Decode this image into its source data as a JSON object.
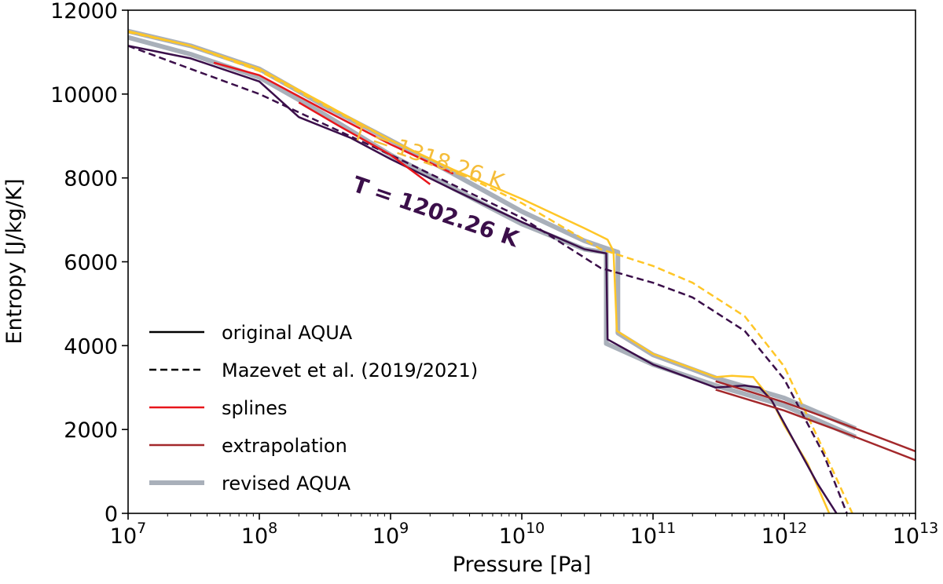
{
  "chart_data": {
    "type": "line",
    "xlabel": "Pressure [Pa]",
    "ylabel": "Entropy [J/kg/K]",
    "x_scale": "log",
    "xlim": [
      10000000.0,
      10000000000000.0
    ],
    "ylim": [
      0,
      12000
    ],
    "x_ticks": [
      {
        "value": 10000000.0,
        "base": "10",
        "exp": "7"
      },
      {
        "value": 100000000.0,
        "base": "10",
        "exp": "8"
      },
      {
        "value": 1000000000.0,
        "base": "10",
        "exp": "9"
      },
      {
        "value": 10000000000.0,
        "base": "10",
        "exp": "10"
      },
      {
        "value": 100000000000.0,
        "base": "10",
        "exp": "11"
      },
      {
        "value": 1000000000000.0,
        "base": "10",
        "exp": "12"
      },
      {
        "value": 10000000000000.0,
        "base": "10",
        "exp": "13"
      }
    ],
    "y_ticks": [
      0,
      2000,
      4000,
      6000,
      8000,
      10000,
      12000
    ],
    "grid": false,
    "legend_position": "lower-left",
    "legend": [
      {
        "label": "original AQUA",
        "color": "#000000",
        "dash": false,
        "width": 2.5
      },
      {
        "label": "Mazevet et al. (2019/2021)",
        "color": "#000000",
        "dash": true,
        "width": 2.5
      },
      {
        "label": "splines",
        "color": "#e8161b",
        "dash": false,
        "width": 2.5
      },
      {
        "label": "extrapolation",
        "color": "#a3282b",
        "dash": false,
        "width": 2.5
      },
      {
        "label": "revised AQUA",
        "color": "#a9b0ba",
        "dash": false,
        "width": 6
      }
    ],
    "annotations": [
      {
        "text": "T = 1318.26 K",
        "color": "#f5bd3a",
        "x": 500000000.0,
        "y": 8950,
        "angle": 19,
        "bold": false
      },
      {
        "text": "T = 1202.26 K",
        "color": "#3b0f4a",
        "x": 500000000.0,
        "y": 7700,
        "angle": 19,
        "bold": true
      }
    ],
    "series": [
      {
        "style": "revised",
        "color": "#a9b0ba",
        "width": 6,
        "dash": false,
        "points": [
          [
            10000000.0,
            11500
          ],
          [
            30000000.0,
            11150
          ],
          [
            100000000.0,
            10600
          ],
          [
            300000000.0,
            9750
          ],
          [
            1000000000.0,
            8900
          ],
          [
            3000000000.0,
            8100
          ],
          [
            10000000000.0,
            7200
          ],
          [
            30000000000.0,
            6500
          ],
          [
            46000000000.0,
            6300
          ],
          [
            54000000000.0,
            6230
          ],
          [
            54000000000.0,
            4300
          ],
          [
            100000000000.0,
            3780
          ],
          [
            300000000000.0,
            3230
          ],
          [
            1000000000000.0,
            2750
          ],
          [
            3500000000000.0,
            2020
          ]
        ]
      },
      {
        "style": "revised",
        "color": "#a9b0ba",
        "width": 6,
        "dash": false,
        "points": [
          [
            10000000.0,
            11350
          ],
          [
            30000000.0,
            10950
          ],
          [
            100000000.0,
            10400
          ],
          [
            300000000.0,
            9550
          ],
          [
            1000000000.0,
            8550
          ],
          [
            3000000000.0,
            7750
          ],
          [
            10000000000.0,
            6900
          ],
          [
            30000000000.0,
            6300
          ],
          [
            44000000000.0,
            6220
          ],
          [
            44000000000.0,
            4050
          ],
          [
            100000000000.0,
            3550
          ],
          [
            300000000000.0,
            3050
          ],
          [
            1000000000000.0,
            2570
          ],
          [
            3500000000000.0,
            1820
          ]
        ]
      },
      {
        "style": "original",
        "color": "#ffc627",
        "width": 2.5,
        "dash": false,
        "points": [
          [
            10000000.0,
            11500
          ],
          [
            30000000.0,
            11150
          ],
          [
            100000000.0,
            10600
          ],
          [
            300000000.0,
            9800
          ],
          [
            1000000000.0,
            8900
          ],
          [
            3000000000.0,
            8200
          ],
          [
            10000000000.0,
            7500
          ],
          [
            30000000000.0,
            6800
          ],
          [
            45000000000.0,
            6530
          ],
          [
            50000000000.0,
            6250
          ],
          [
            53000000000.0,
            4350
          ],
          [
            100000000000.0,
            3800
          ],
          [
            300000000000.0,
            3250
          ],
          [
            400000000000.0,
            3280
          ],
          [
            580000000000.0,
            3250
          ],
          [
            800000000000.0,
            2700
          ],
          [
            1000000000000.0,
            2100
          ],
          [
            1500000000000.0,
            1200
          ],
          [
            2200000000000.0,
            0
          ]
        ]
      },
      {
        "style": "original",
        "color": "#3b0f4a",
        "width": 2.5,
        "dash": false,
        "points": [
          [
            10000000.0,
            11150
          ],
          [
            30000000.0,
            10850
          ],
          [
            100000000.0,
            10300
          ],
          [
            200000000.0,
            9450
          ],
          [
            500000000.0,
            8950
          ],
          [
            1000000000.0,
            8450
          ],
          [
            3000000000.0,
            7720
          ],
          [
            10000000000.0,
            6950
          ],
          [
            30000000000.0,
            6300
          ],
          [
            44000000000.0,
            6200
          ],
          [
            45000000000.0,
            4150
          ],
          [
            100000000000.0,
            3550
          ],
          [
            300000000000.0,
            3000
          ],
          [
            500000000000.0,
            3050
          ],
          [
            650000000000.0,
            3000
          ],
          [
            800000000000.0,
            2700
          ],
          [
            1200000000000.0,
            1700
          ],
          [
            1800000000000.0,
            700
          ],
          [
            2500000000000.0,
            0
          ]
        ]
      },
      {
        "style": "mazevet",
        "color": "#ffc627",
        "width": 2.5,
        "dash": true,
        "points": [
          [
            10000000.0,
            11480
          ],
          [
            30000000.0,
            11150
          ],
          [
            100000000.0,
            10550
          ],
          [
            1000000000.0,
            8900
          ],
          [
            10000000000.0,
            7400
          ],
          [
            40000000000.0,
            6300
          ],
          [
            100000000000.0,
            5900
          ],
          [
            200000000000.0,
            5500
          ],
          [
            500000000000.0,
            4700
          ],
          [
            1000000000000.0,
            3500
          ],
          [
            2000000000000.0,
            1500
          ],
          [
            3300000000000.0,
            0
          ]
        ]
      },
      {
        "style": "mazevet",
        "color": "#3b0f4a",
        "width": 2.5,
        "dash": true,
        "points": [
          [
            10000000.0,
            11150
          ],
          [
            30000000.0,
            10600
          ],
          [
            100000000.0,
            10000
          ],
          [
            1000000000.0,
            8550
          ],
          [
            10000000000.0,
            7050
          ],
          [
            40000000000.0,
            5850
          ],
          [
            100000000000.0,
            5500
          ],
          [
            200000000000.0,
            5150
          ],
          [
            500000000000.0,
            4350
          ],
          [
            1000000000000.0,
            3200
          ],
          [
            2000000000000.0,
            1400
          ],
          [
            3000000000000.0,
            0
          ]
        ]
      },
      {
        "style": "splines",
        "color": "#e8161b",
        "width": 2.5,
        "dash": false,
        "points": [
          [
            45000000.0,
            10750
          ],
          [
            100000000.0,
            10450
          ],
          [
            300000000.0,
            9650
          ],
          [
            1000000000.0,
            8800
          ],
          [
            3000000000.0,
            8100
          ]
        ]
      },
      {
        "style": "splines",
        "color": "#e8161b",
        "width": 2.5,
        "dash": false,
        "points": [
          [
            200000000.0,
            9800
          ],
          [
            400000000.0,
            9250
          ],
          [
            1000000000.0,
            8550
          ],
          [
            2000000000.0,
            7850
          ]
        ]
      },
      {
        "style": "extrapolation",
        "color": "#a3282b",
        "width": 2.5,
        "dash": false,
        "points": [
          [
            300000000000.0,
            3150
          ],
          [
            1000000000000.0,
            2650
          ],
          [
            3000000000000.0,
            2100
          ],
          [
            10000000000000.0,
            1480
          ]
        ]
      },
      {
        "style": "extrapolation",
        "color": "#a3282b",
        "width": 2.5,
        "dash": false,
        "points": [
          [
            300000000000.0,
            2950
          ],
          [
            1000000000000.0,
            2450
          ],
          [
            3000000000000.0,
            1900
          ],
          [
            10000000000000.0,
            1270
          ]
        ]
      }
    ]
  }
}
